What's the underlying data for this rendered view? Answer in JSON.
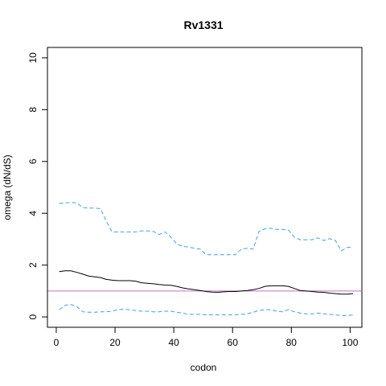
{
  "chart_data": {
    "type": "line",
    "title": "Rv1331",
    "xlabel": "codon",
    "ylabel": "omega (dN/dS)",
    "xlim": [
      -3,
      104
    ],
    "ylim": [
      -0.4,
      10.4
    ],
    "xticks": [
      0,
      20,
      40,
      60,
      80,
      100
    ],
    "yticks": [
      0,
      2,
      4,
      6,
      8,
      10
    ],
    "grid": false,
    "reference_line": {
      "y": 1,
      "color": "#c06fc0"
    },
    "series": [
      {
        "style": "solid",
        "color": "#000000",
        "x": [
          1,
          3,
          5,
          7,
          9,
          11,
          13,
          15,
          17,
          19,
          21,
          23,
          25,
          27,
          29,
          31,
          33,
          35,
          37,
          39,
          41,
          43,
          45,
          47,
          49,
          51,
          53,
          55,
          57,
          59,
          61,
          63,
          65,
          67,
          69,
          71,
          73,
          75,
          77,
          79,
          81,
          83,
          85,
          87,
          89,
          91,
          93,
          95,
          97,
          99,
          101
        ],
        "y": [
          1.75,
          1.78,
          1.78,
          1.72,
          1.65,
          1.58,
          1.55,
          1.52,
          1.45,
          1.42,
          1.4,
          1.4,
          1.4,
          1.38,
          1.32,
          1.3,
          1.28,
          1.25,
          1.23,
          1.22,
          1.18,
          1.12,
          1.08,
          1.05,
          1.02,
          0.98,
          0.96,
          0.95,
          0.97,
          0.98,
          0.98,
          1.0,
          1.02,
          1.05,
          1.1,
          1.18,
          1.2,
          1.2,
          1.2,
          1.18,
          1.1,
          1.02,
          1.0,
          0.98,
          0.96,
          0.95,
          0.92,
          0.9,
          0.88,
          0.88,
          0.9
        ]
      },
      {
        "style": "dashed",
        "color": "#3fa3e0",
        "x": [
          1,
          3,
          5,
          7,
          9,
          11,
          13,
          15,
          17,
          19,
          21,
          23,
          25,
          27,
          29,
          31,
          33,
          35,
          37,
          39,
          41,
          43,
          45,
          47,
          49,
          51,
          53,
          55,
          57,
          59,
          61,
          63,
          65,
          67,
          69,
          71,
          73,
          75,
          77,
          79,
          81,
          83,
          85,
          87,
          89,
          91,
          93,
          95,
          97,
          99,
          101
        ],
        "y": [
          4.38,
          4.4,
          4.42,
          4.4,
          4.22,
          4.2,
          4.2,
          4.18,
          3.7,
          3.28,
          3.28,
          3.28,
          3.28,
          3.28,
          3.32,
          3.32,
          3.3,
          3.18,
          3.28,
          3.08,
          2.82,
          2.72,
          2.7,
          2.65,
          2.62,
          2.4,
          2.4,
          2.4,
          2.4,
          2.4,
          2.4,
          2.62,
          2.65,
          2.62,
          3.3,
          3.4,
          3.42,
          3.38,
          3.38,
          3.35,
          3.08,
          2.98,
          2.98,
          2.98,
          3.05,
          2.95,
          3.02,
          2.95,
          2.55,
          2.68,
          2.7
        ]
      },
      {
        "style": "dashed",
        "color": "#3fa3e0",
        "x": [
          1,
          3,
          5,
          7,
          9,
          11,
          13,
          15,
          17,
          19,
          21,
          23,
          25,
          27,
          29,
          31,
          33,
          35,
          37,
          39,
          41,
          43,
          45,
          47,
          49,
          51,
          53,
          55,
          57,
          59,
          61,
          63,
          65,
          67,
          69,
          71,
          73,
          75,
          77,
          79,
          81,
          83,
          85,
          87,
          89,
          91,
          93,
          95,
          97,
          99,
          101
        ],
        "y": [
          0.28,
          0.45,
          0.48,
          0.4,
          0.2,
          0.18,
          0.18,
          0.2,
          0.2,
          0.22,
          0.28,
          0.3,
          0.28,
          0.25,
          0.22,
          0.22,
          0.2,
          0.2,
          0.22,
          0.22,
          0.18,
          0.15,
          0.1,
          0.1,
          0.1,
          0.08,
          0.08,
          0.08,
          0.08,
          0.08,
          0.08,
          0.1,
          0.12,
          0.18,
          0.25,
          0.28,
          0.28,
          0.22,
          0.2,
          0.28,
          0.2,
          0.15,
          0.12,
          0.12,
          0.15,
          0.12,
          0.1,
          0.08,
          0.05,
          0.05,
          0.08
        ]
      }
    ]
  }
}
